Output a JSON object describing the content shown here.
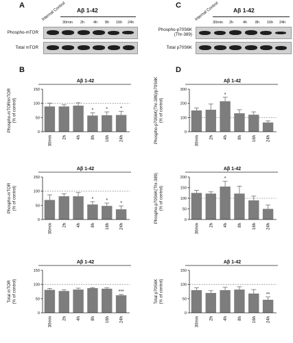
{
  "colors": {
    "bar": "#7d7d7d",
    "error": "#6a6a6a",
    "dashed": "#999999",
    "axis": "#222222",
    "band": "#1e1e1e",
    "membrane": "#cfcfcf"
  },
  "panel_a": {
    "letter": "A",
    "title": "Aβ 1-42",
    "control_label": "Internal Control",
    "time_labels": [
      "30min",
      "2h",
      "4h",
      "8h",
      "16h",
      "24h"
    ],
    "blots": [
      {
        "label": "Phospho-mTOR"
      },
      {
        "label": "Total mTOR"
      }
    ]
  },
  "panel_c": {
    "letter": "C",
    "title": "Aβ 1-42",
    "control_label": "Internal Control",
    "time_labels": [
      "30min",
      "2h",
      "4h",
      "8h",
      "16h",
      "24h"
    ],
    "blots": [
      {
        "label": "Phospho-p70S6K (Thr-389)"
      },
      {
        "label": "Total p70S6K"
      }
    ]
  },
  "panel_b": {
    "letter": "B"
  },
  "panel_d": {
    "letter": "D"
  },
  "chart_data": [
    {
      "type": "bar",
      "title": "Aβ 1-42",
      "ylabel": "Phospho-mTOR/mTOR (% of control)",
      "categories": [
        "30min",
        "2h",
        "4h",
        "8h",
        "16h",
        "24h"
      ],
      "values": [
        89,
        89,
        92,
        57,
        58,
        59
      ],
      "errors": [
        12,
        6,
        10,
        10,
        12,
        13
      ],
      "annotations": [
        "",
        "",
        "",
        "*",
        "*",
        "*"
      ],
      "ylim": [
        0,
        150
      ],
      "yticks": [
        0,
        50,
        100,
        150
      ],
      "reference_line": 100
    },
    {
      "type": "bar",
      "title": "Aβ 1-42",
      "ylabel": "Phospho-mTOR (% of control)",
      "categories": [
        "30min",
        "2h",
        "4h",
        "8h",
        "16h",
        "24h"
      ],
      "values": [
        69,
        82,
        82,
        53,
        48,
        36
      ],
      "errors": [
        18,
        9,
        13,
        10,
        10,
        12
      ],
      "annotations": [
        "",
        "",
        "",
        "*",
        "*",
        "*"
      ],
      "ylim": [
        0,
        150
      ],
      "yticks": [
        0,
        50,
        100,
        150
      ],
      "reference_line": 100
    },
    {
      "type": "bar",
      "title": "Aβ 1-42",
      "ylabel": "Total mTOR (% of control)",
      "categories": [
        "30min",
        "2h",
        "4h",
        "8h",
        "16h",
        "24h"
      ],
      "values": [
        81,
        77,
        82,
        87,
        85,
        62
      ],
      "errors": [
        5,
        4,
        5,
        2,
        3,
        3
      ],
      "annotations": [
        "",
        "",
        "",
        "",
        "",
        "***"
      ],
      "ylim": [
        0,
        150
      ],
      "yticks": [
        0,
        50,
        100,
        150
      ],
      "reference_line": 100
    },
    {
      "type": "bar",
      "title": "Aβ 1-42",
      "ylabel": "Phospho-p70S6K(Thr-389)/p70S6K (% of control)",
      "categories": [
        "30min",
        "2h",
        "4h",
        "8h",
        "16h",
        "24h"
      ],
      "values": [
        150,
        155,
        215,
        130,
        120,
        65
      ],
      "errors": [
        18,
        40,
        28,
        25,
        20,
        12
      ],
      "annotations": [
        "",
        "",
        "*",
        "",
        "",
        ""
      ],
      "ylim": [
        0,
        300
      ],
      "yticks": [
        0,
        100,
        200,
        300
      ],
      "reference_line": 100
    },
    {
      "type": "bar",
      "title": "Aβ 1-42",
      "ylabel": "Phospho-p70S6K(Thr-389) (% of control)",
      "categories": [
        "30min",
        "2h",
        "4h",
        "8h",
        "16h",
        "24h"
      ],
      "values": [
        125,
        122,
        155,
        122,
        90,
        50
      ],
      "errors": [
        12,
        8,
        25,
        35,
        20,
        18
      ],
      "annotations": [
        "",
        "",
        "*",
        "",
        "",
        ""
      ],
      "ylim": [
        0,
        200
      ],
      "yticks": [
        0,
        50,
        100,
        150,
        200
      ],
      "reference_line": 100
    },
    {
      "type": "bar",
      "title": "Aβ 1-42",
      "ylabel": "Total p70S6K (% of control)",
      "categories": [
        "30min",
        "2h",
        "4h",
        "8h",
        "16h",
        "24h"
      ],
      "values": [
        80,
        70,
        80,
        82,
        68,
        46
      ],
      "errors": [
        8,
        8,
        10,
        10,
        14,
        10
      ],
      "annotations": [
        "",
        "",
        "",
        "",
        "",
        "**"
      ],
      "ylim": [
        0,
        150
      ],
      "yticks": [
        0,
        50,
        100,
        150
      ],
      "reference_line": 100
    }
  ]
}
